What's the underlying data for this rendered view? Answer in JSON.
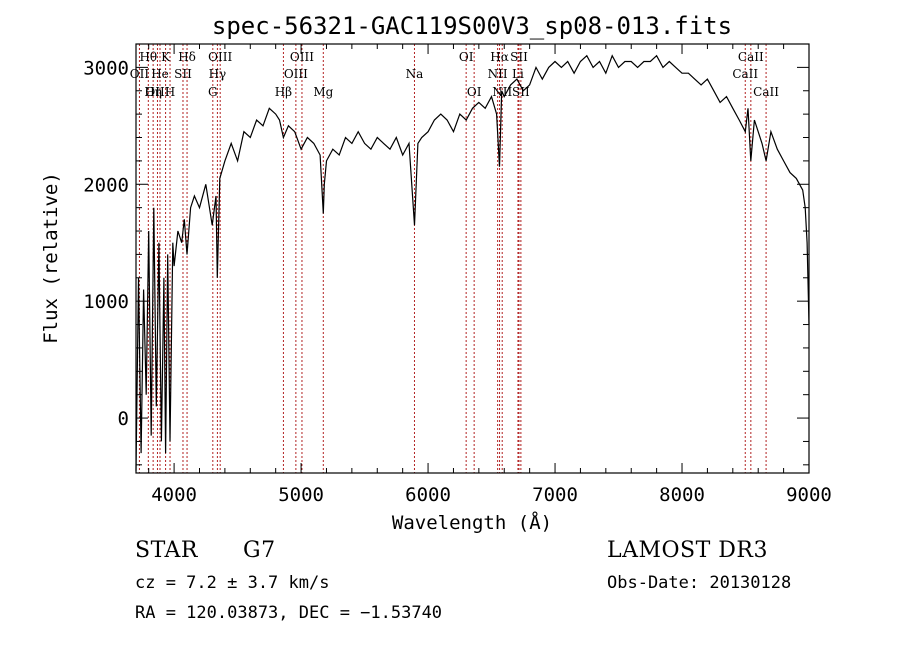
{
  "chart_data": {
    "type": "line",
    "title": "spec-56321-GAC119S00V3_sp08-013.fits",
    "xlabel": "Wavelength (Å)",
    "ylabel": "Flux (relative)",
    "xlim": [
      3700,
      9000
    ],
    "ylim": [
      -470,
      3200
    ],
    "x_ticks": [
      4000,
      5000,
      6000,
      7000,
      8000,
      9000
    ],
    "y_ticks": [
      0,
      1000,
      2000,
      3000
    ],
    "grid": false,
    "line_color": "#000000",
    "marker_color": "#b22222",
    "series": [
      {
        "name": "flux",
        "x": [
          3700,
          3720,
          3740,
          3760,
          3780,
          3800,
          3820,
          3840,
          3860,
          3880,
          3900,
          3920,
          3933,
          3950,
          3968,
          3990,
          4000,
          4030,
          4060,
          4080,
          4102,
          4130,
          4160,
          4200,
          4250,
          4300,
          4330,
          4340,
          4360,
          4400,
          4450,
          4500,
          4550,
          4600,
          4650,
          4700,
          4750,
          4800,
          4830,
          4861,
          4900,
          4950,
          5000,
          5050,
          5100,
          5150,
          5175,
          5183,
          5200,
          5250,
          5300,
          5350,
          5400,
          5450,
          5500,
          5550,
          5600,
          5650,
          5700,
          5750,
          5800,
          5850,
          5893,
          5920,
          5950,
          6000,
          6050,
          6100,
          6150,
          6200,
          6250,
          6300,
          6350,
          6400,
          6450,
          6500,
          6540,
          6563,
          6580,
          6600,
          6650,
          6700,
          6750,
          6800,
          6850,
          6900,
          6950,
          7000,
          7050,
          7100,
          7150,
          7200,
          7250,
          7300,
          7350,
          7400,
          7450,
          7500,
          7550,
          7600,
          7650,
          7700,
          7750,
          7800,
          7850,
          7900,
          7950,
          8000,
          8050,
          8100,
          8150,
          8200,
          8250,
          8300,
          8350,
          8400,
          8450,
          8498,
          8520,
          8542,
          8570,
          8600,
          8630,
          8662,
          8700,
          8750,
          8800,
          8850,
          8900,
          8950,
          8970,
          8985,
          9000
        ],
        "values": [
          -450,
          1200,
          -300,
          1100,
          200,
          1600,
          -150,
          1800,
          100,
          1500,
          -200,
          1200,
          -300,
          1400,
          -200,
          1500,
          1300,
          1600,
          1500,
          1700,
          1400,
          1800,
          1900,
          1800,
          2000,
          1650,
          1900,
          1200,
          2050,
          2200,
          2350,
          2200,
          2450,
          2400,
          2550,
          2500,
          2650,
          2600,
          2550,
          2400,
          2500,
          2450,
          2300,
          2400,
          2350,
          2250,
          1750,
          2000,
          2200,
          2300,
          2250,
          2400,
          2350,
          2450,
          2350,
          2300,
          2400,
          2350,
          2300,
          2400,
          2250,
          2350,
          1650,
          2350,
          2400,
          2450,
          2550,
          2600,
          2550,
          2450,
          2600,
          2550,
          2650,
          2700,
          2650,
          2750,
          2600,
          2150,
          2800,
          2750,
          2850,
          2900,
          2800,
          2850,
          3000,
          2900,
          3000,
          3050,
          3000,
          3050,
          2950,
          3050,
          3100,
          3000,
          3050,
          2950,
          3100,
          3000,
          3050,
          3050,
          3000,
          3050,
          3050,
          3100,
          3000,
          3050,
          3000,
          2950,
          2950,
          2900,
          2850,
          2900,
          2800,
          2700,
          2750,
          2650,
          2550,
          2450,
          2650,
          2200,
          2550,
          2450,
          2350,
          2200,
          2450,
          2300,
          2200,
          2100,
          2050,
          1950,
          1800,
          1500,
          800
        ]
      }
    ],
    "line_markers": [
      {
        "label": "Hθ",
        "x": 3797,
        "row": 0
      },
      {
        "label": "OII",
        "x": 3727,
        "row": 1
      },
      {
        "label": "OIII",
        "x": 3869,
        "row": 2
      },
      {
        "label": "Hη",
        "x": 3835,
        "row": 2
      },
      {
        "label": "K",
        "x": 3933,
        "row": 0
      },
      {
        "label": "He",
        "x": 3889,
        "row": 1
      },
      {
        "label": "SII",
        "x": 4070,
        "row": 1
      },
      {
        "label": "H",
        "x": 3968,
        "row": 2
      },
      {
        "label": "Hδ",
        "x": 4102,
        "row": 0
      },
      {
        "label": "OIII",
        "x": 4363,
        "row": 0
      },
      {
        "label": "Hγ",
        "x": 4341,
        "row": 1
      },
      {
        "label": "G",
        "x": 4305,
        "row": 2
      },
      {
        "label": "Hβ",
        "x": 4861,
        "row": 2
      },
      {
        "label": "OIII",
        "x": 5007,
        "row": 0
      },
      {
        "label": "OIII",
        "x": 4959,
        "row": 1
      },
      {
        "label": "Mg",
        "x": 5175,
        "row": 2
      },
      {
        "label": "Na",
        "x": 5893,
        "row": 1
      },
      {
        "label": "OI",
        "x": 6300,
        "row": 0
      },
      {
        "label": "OI",
        "x": 6363,
        "row": 2
      },
      {
        "label": "Hα",
        "x": 6563,
        "row": 0
      },
      {
        "label": "SII",
        "x": 6716,
        "row": 0
      },
      {
        "label": "NII",
        "x": 6548,
        "row": 1
      },
      {
        "label": "Li",
        "x": 6708,
        "row": 1
      },
      {
        "label": "NII",
        "x": 6584,
        "row": 2
      },
      {
        "label": "SII",
        "x": 6731,
        "row": 2
      },
      {
        "label": "CaII",
        "x": 8498,
        "row": 1
      },
      {
        "label": "CaII",
        "x": 8542,
        "row": 0
      },
      {
        "label": "CaII",
        "x": 8662,
        "row": 2
      }
    ]
  },
  "info": {
    "class": "STAR",
    "subclass": "G7",
    "cz": "cz = 7.2 ± 3.7 km/s",
    "radec": "RA = 120.03873, DEC =  −1.53740",
    "survey": "LAMOST DR3",
    "obs_date": "Obs-Date: 20130128"
  }
}
